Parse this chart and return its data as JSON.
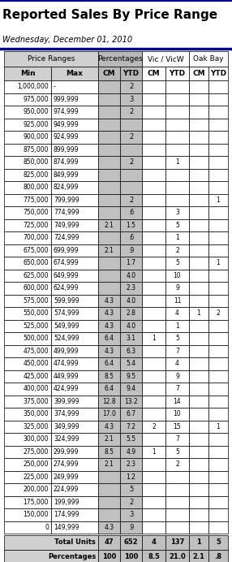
{
  "title": "Reported Sales By Price Range",
  "subtitle": "Wednesday, December 01, 2010",
  "col_labels2": [
    "Min",
    "Max",
    "CM",
    "YTD",
    "CM",
    "YTD",
    "CM",
    "YTD"
  ],
  "group_headers": [
    "Price Ranges",
    "Percentages",
    "Vic / VicW",
    "Oak Bay"
  ],
  "rows": [
    [
      "1,000,000",
      "-",
      "",
      ".2",
      "",
      "",
      "",
      ""
    ],
    [
      "975,000",
      "999,999",
      "",
      ".3",
      "",
      "",
      "",
      ""
    ],
    [
      "950,000",
      "974,999",
      "",
      ".2",
      "",
      "",
      "",
      ""
    ],
    [
      "925,000",
      "949,999",
      "",
      "",
      "",
      "",
      "",
      ""
    ],
    [
      "900,000",
      "924,999",
      "",
      ".2",
      "",
      "",
      "",
      ""
    ],
    [
      "875,000",
      "899,999",
      "",
      "",
      "",
      "",
      "",
      ""
    ],
    [
      "850,000",
      "874,999",
      "",
      ".2",
      "",
      "1",
      "",
      ""
    ],
    [
      "825,000",
      "849,999",
      "",
      "",
      "",
      "",
      "",
      ""
    ],
    [
      "800,000",
      "824,999",
      "",
      "",
      "",
      "",
      "",
      ""
    ],
    [
      "775,000",
      "799,999",
      "",
      ".2",
      "",
      "",
      "",
      "1"
    ],
    [
      "750,000",
      "774,999",
      "",
      ".6",
      "",
      "3",
      "",
      ""
    ],
    [
      "725,000",
      "749,999",
      "2.1",
      "1.5",
      "",
      "5",
      "",
      ""
    ],
    [
      "700,000",
      "724,999",
      "",
      ".6",
      "",
      "1",
      "",
      ""
    ],
    [
      "675,000",
      "699,999",
      "2.1",
      ".9",
      "",
      "2",
      "",
      ""
    ],
    [
      "650,000",
      "674,999",
      "",
      "1.7",
      "",
      "5",
      "",
      "1"
    ],
    [
      "625,000",
      "649,999",
      "",
      "4.0",
      "",
      "10",
      "",
      ""
    ],
    [
      "600,000",
      "624,999",
      "",
      "2.3",
      "",
      "9",
      "",
      ""
    ],
    [
      "575,000",
      "599,999",
      "4.3",
      "4.0",
      "",
      "11",
      "",
      ""
    ],
    [
      "550,000",
      "574,999",
      "4.3",
      "2.8",
      "",
      "4",
      "1",
      "2"
    ],
    [
      "525,000",
      "549,999",
      "4.3",
      "4.0",
      "",
      "1",
      "",
      ""
    ],
    [
      "500,000",
      "524,999",
      "6.4",
      "3.1",
      "1",
      "5",
      "",
      ""
    ],
    [
      "475,000",
      "499,999",
      "4.3",
      "6.3",
      "",
      "7",
      "",
      ""
    ],
    [
      "450,000",
      "474,999",
      "6.4",
      "5.4",
      "",
      "4",
      "",
      ""
    ],
    [
      "425,000",
      "449,999",
      "8.5",
      "9.5",
      "",
      "9",
      "",
      ""
    ],
    [
      "400,000",
      "424,999",
      "6.4",
      "9.4",
      "",
      "7",
      "",
      ""
    ],
    [
      "375,000",
      "399,999",
      "12.8",
      "13.2",
      "",
      "14",
      "",
      ""
    ],
    [
      "350,000",
      "374,999",
      "17.0",
      "6.7",
      "",
      "10",
      "",
      ""
    ],
    [
      "325,000",
      "349,999",
      "4.3",
      "7.2",
      "2",
      "15",
      "",
      "1"
    ],
    [
      "300,000",
      "324,999",
      "2.1",
      "5.5",
      "",
      "7",
      "",
      ""
    ],
    [
      "275,000",
      "299,999",
      "8.5",
      "4.9",
      "1",
      "5",
      "",
      ""
    ],
    [
      "250,000",
      "274,999",
      "2.1",
      "2.3",
      "",
      "2",
      "",
      ""
    ],
    [
      "225,000",
      "249,999",
      "",
      "1.2",
      "",
      "",
      "",
      ""
    ],
    [
      "200,000",
      "224,999",
      "",
      ".5",
      "",
      "",
      "",
      ""
    ],
    [
      "175,000",
      "199,999",
      "",
      ".2",
      "",
      "",
      "",
      ""
    ],
    [
      "150,000",
      "174,999",
      "",
      ".3",
      "",
      "",
      "",
      ""
    ],
    [
      "0",
      "149,999",
      "4.3",
      ".9",
      "",
      "",
      "",
      ""
    ]
  ],
  "footer": [
    [
      "Total Units",
      "47",
      "652",
      "4",
      "137",
      "1",
      "5"
    ],
    [
      "Percentages",
      "100",
      "100",
      "8.5",
      "21.0",
      "2.1",
      ".8"
    ]
  ],
  "title_fontsize": 11,
  "subtitle_fontsize": 7,
  "header_fontsize": 6.5,
  "data_fontsize": 5.5,
  "footer_fontsize": 6.0,
  "blue_line_color": "#00008b",
  "border_color": "#000000",
  "bg_price_header": "#d0d0d0",
  "bg_pct_header": "#b8b8b8",
  "bg_white": "#ffffff",
  "bg_pct_data": "#c0c0c0",
  "bg_footer_label": "#d0d0d0",
  "bg_footer_data": "#c0c0c0"
}
